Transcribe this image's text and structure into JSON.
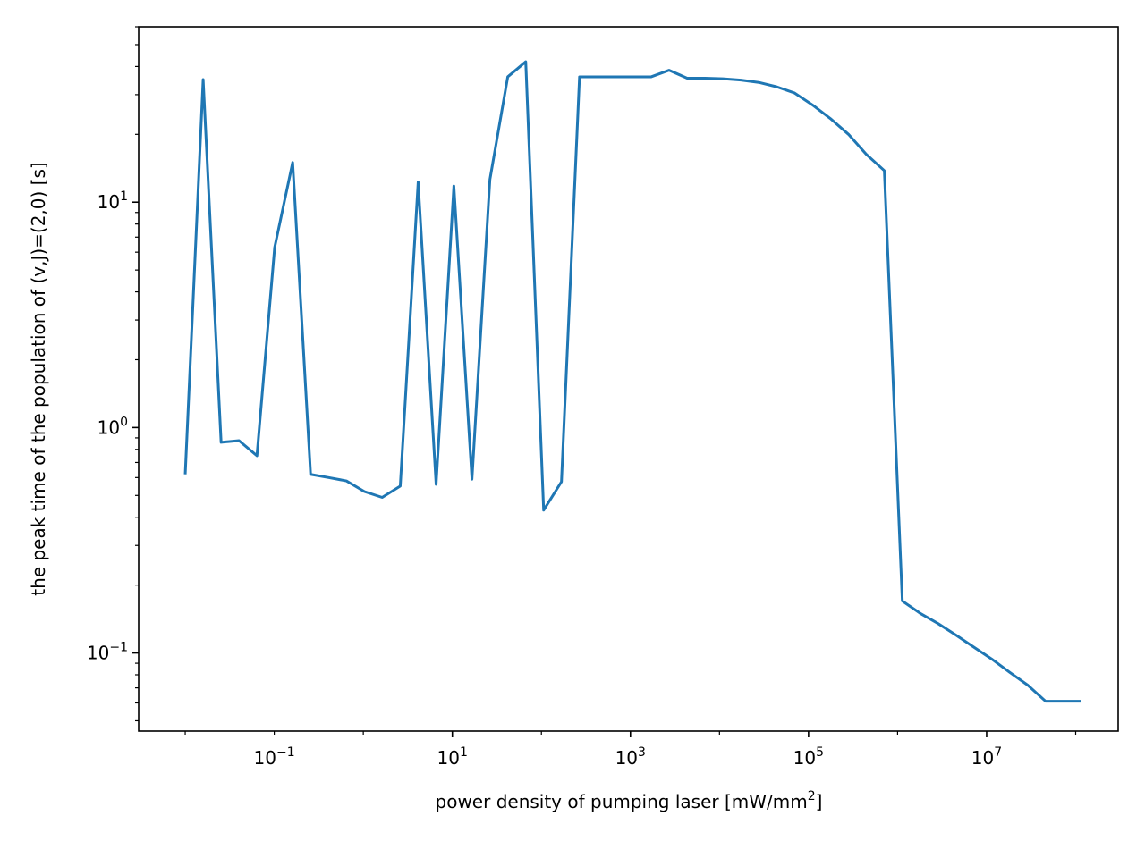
{
  "chart_data": {
    "type": "line",
    "title": "",
    "xlabel": "power density of pumping laser [mW/mm",
    "xlabel_sup": "2",
    "xlabel_end": "]",
    "ylabel": "the peak time of the population of (v,J)=(2,0) [s]",
    "xscale": "log",
    "yscale": "log",
    "xlim": [
      0.003,
      300000000
    ],
    "ylim": [
      0.045,
      60
    ],
    "grid": false,
    "color": "#1f77b4",
    "x_ticks": [
      {
        "value": 0.1,
        "base": "10",
        "exp": "−1"
      },
      {
        "value": 10,
        "base": "10",
        "exp": "1"
      },
      {
        "value": 1000,
        "base": "10",
        "exp": "3"
      },
      {
        "value": 100000,
        "base": "10",
        "exp": "5"
      },
      {
        "value": 10000000,
        "base": "10",
        "exp": "7"
      }
    ],
    "y_ticks": [
      {
        "value": 0.1,
        "base": "10",
        "exp": "−1"
      },
      {
        "value": 1,
        "base": "10",
        "exp": "0"
      },
      {
        "value": 10,
        "base": "10",
        "exp": "1"
      }
    ],
    "series": [
      {
        "x": [
          0.01,
          0.0159,
          0.0253,
          0.0402,
          0.0639,
          0.101,
          0.161,
          0.256,
          0.407,
          0.646,
          1.03,
          1.63,
          2.6,
          4.13,
          6.57,
          10.4,
          16.6,
          26.4,
          41.9,
          66.7,
          106,
          168,
          268,
          426,
          677,
          1080,
          1710,
          2720,
          4330,
          6880,
          10900,
          17400,
          27600,
          43900,
          69800,
          111000,
          176000,
          281000,
          446000,
          710000,
          1130000,
          1790000,
          2850000,
          4530000,
          7200000,
          11400000,
          18200000,
          28900000,
          46000000,
          73100000,
          116000000
        ],
        "y": [
          0.62,
          35,
          0.86,
          0.875,
          0.75,
          6.3,
          15,
          0.62,
          0.6,
          0.58,
          0.52,
          0.49,
          0.55,
          12.3,
          0.56,
          11.8,
          0.59,
          12.6,
          36,
          42,
          0.43,
          0.575,
          36,
          36,
          36,
          36,
          36,
          38.5,
          35.5,
          35.5,
          35.3,
          34.8,
          34.0,
          32.5,
          30.5,
          27.0,
          23.5,
          20.0,
          16.3,
          13.8,
          0.17,
          0.15,
          0.135,
          0.12,
          0.106,
          0.094,
          0.082,
          0.072,
          0.061,
          0.061,
          0.061
        ]
      }
    ]
  }
}
